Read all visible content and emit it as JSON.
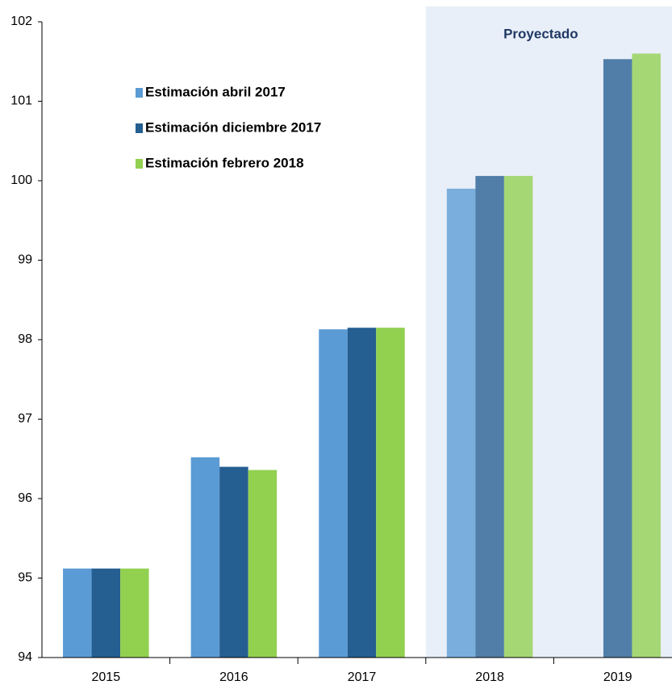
{
  "chart_data": {
    "type": "bar",
    "categories": [
      "2015",
      "2016",
      "2017",
      "2018",
      "2019"
    ],
    "series": [
      {
        "name": "Estimación abril 2017",
        "color": "#5b9bd5",
        "values": [
          95.12,
          96.52,
          98.13,
          99.9,
          null
        ]
      },
      {
        "name": "Estimación diciembre 2017",
        "color": "#255e91",
        "values": [
          95.12,
          96.4,
          98.15,
          100.06,
          101.53
        ]
      },
      {
        "name": "Estimación febrero 2018",
        "color": "#92d050",
        "values": [
          95.12,
          96.36,
          98.15,
          100.06,
          101.6
        ]
      }
    ],
    "ylim": [
      94,
      102
    ],
    "yticks": [
      94,
      95,
      96,
      97,
      98,
      99,
      100,
      101,
      102
    ],
    "grid": false,
    "legend": "upper left",
    "shaded_region": {
      "label": "Proyectado",
      "from": "2018",
      "color": "#e9eff8"
    }
  }
}
